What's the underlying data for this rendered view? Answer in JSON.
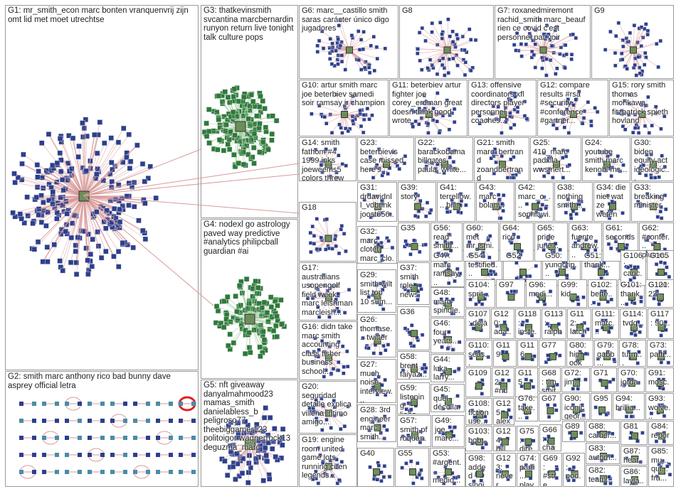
{
  "groups": [
    {
      "id": "G1",
      "text": "G1: mr_smith_econ marc bonten vranquenvrij zijn omt lid met moet utrechtse"
    },
    {
      "id": "G2",
      "text": "G2: smith marc anthony rico bad bunny dave asprey official letra"
    },
    {
      "id": "G3",
      "text": "G3: thatkevinsmith svcantina marcbernardin runyon return live tonight talk culture pops"
    },
    {
      "id": "G4",
      "text": "G4: nodexl go astrology paved way predictive #analytics philipcball guardian #ai"
    },
    {
      "id": "G5",
      "text": "G5: nft giveaway danyalmahmood23 mamas_smith danielabless_b peligroso77 theebiggamer123 politoigor wagnerrock13 deguzma_marc"
    },
    {
      "id": "G6",
      "text": "G6: marc__castillo smith saras carácter único digo jugadores"
    },
    {
      "id": "G7",
      "text": "G7: roxanedmiremont rachid_smith marc_beauf rien ce covid c'est personnel par voir"
    },
    {
      "id": "G8",
      "text": "G8"
    },
    {
      "id": "G9",
      "text": "G9"
    },
    {
      "id": "G10",
      "text": "G10: artur smith marc joe beterbiev samedi soir ramsay jr champion"
    },
    {
      "id": "G11",
      "text": "G11: beterbiev artur fighter joe corey_erdman great doesn think good wrote"
    },
    {
      "id": "G12",
      "text": "G12: compare results #rsa #security #conference #gartner..."
    },
    {
      "id": "G13",
      "text": "G13: offensive coordinators xfl directors player personnel coaches..."
    },
    {
      "id": "G14",
      "text": "G14: smith fathom #4 1999 inks joeweems5 colors threw marc_silvestr..."
    },
    {
      "id": "G15",
      "text": "G15: rory smith thomas morikawa fitzpatrick spieth hovland"
    },
    {
      "id": "G16",
      "text": "G16: didn take marc smith accounting class fisher business school..."
    },
    {
      "id": "G17",
      "text": "G17: australians usopengolf field week marc leishman marcleish..."
    },
    {
      "id": "G18",
      "text": "G18"
    },
    {
      "id": "G19",
      "text": "G19: engine room united game lots running ciren legends..."
    },
    {
      "id": "G20",
      "text": "G20: seguridad detalle explica villena íntimo amigo..."
    },
    {
      "id": "G21",
      "text": "G21: smith marc_bertrand zoandbertrand"
    },
    {
      "id": "G22",
      "text": "G22: barackobama billgates paula_white..."
    },
    {
      "id": "G23",
      "text": "G23: beterbiev's case missed here's..."
    },
    {
      "id": "G24",
      "text": "G24: youtube smith marc kenobi ms..."
    },
    {
      "id": "G25",
      "text": "G25: 410_marc padxlla wwsmert..."
    },
    {
      "id": "G26",
      "text": "G26: thomase... twitter"
    },
    {
      "id": "G27",
      "text": "G27: much noise interview..."
    },
    {
      "id": "G28",
      "text": "G28: 3rd engineer marc smith..."
    },
    {
      "id": "G29",
      "text": "G29: smith wilt list top 10 sum..."
    },
    {
      "id": "G30",
      "text": "G30: biden equity act ideologic..."
    },
    {
      "id": "G31",
      "text": "G31: drdavidnl l_vdbrink joost656..."
    },
    {
      "id": "G32",
      "text": "G32: marc clotet marc_clo... #ultimopr..."
    },
    {
      "id": "G33",
      "text": "G33: breaking minister"
    },
    {
      "id": "G34",
      "text": "G34: die niet wat ze weten"
    },
    {
      "id": "G35",
      "text": "G35"
    },
    {
      "id": "G36",
      "text": "G36"
    },
    {
      "id": "G37",
      "text": "G37: smith role news"
    },
    {
      "id": "G38",
      "text": "G38: nothing smith..."
    },
    {
      "id": "G39",
      "text": "G39: story"
    },
    {
      "id": "G40",
      "text": "G40"
    },
    {
      "id": "G41",
      "text": "G41: terrellow... bill..."
    },
    {
      "id": "G42",
      "text": "G42: marc_o_... sophiawi..."
    },
    {
      "id": "G43",
      "text": "G43: marc bolan..."
    },
    {
      "id": "G44",
      "text": "G44: luka larry..."
    },
    {
      "id": "G45",
      "text": "G45: quel décolla..."
    },
    {
      "id": "G46",
      "text": "G46: four years..."
    },
    {
      "id": "G47",
      "text": "G47: marc ramsay..."
    },
    {
      "id": "G48",
      "text": "G48: marc spindle..."
    },
    {
      "id": "G49",
      "text": "G49: joe marc..."
    },
    {
      "id": "G50",
      "text": "G50: yungcrip..."
    },
    {
      "id": "G51",
      "text": "G51: thank..."
    },
    {
      "id": "G52",
      "text": "G52"
    },
    {
      "id": "G53",
      "text": "G53: #argent... medio..."
    },
    {
      "id": "G54",
      "text": "G54: testified..."
    },
    {
      "id": "G55",
      "text": "G55"
    },
    {
      "id": "G56",
      "text": "G56: read smith..."
    },
    {
      "id": "G57",
      "text": "G57: smith pf roquan..."
    },
    {
      "id": "G58",
      "text": "G58: brent faiyaz..."
    },
    {
      "id": "G59",
      "text": "G59: listening lions..."
    },
    {
      "id": "G60",
      "text": "G60: met mr_smi..."
    },
    {
      "id": "G61",
      "text": "G61: seconds"
    },
    {
      "id": "G62",
      "text": "G62: #confér... plume..."
    },
    {
      "id": "G63",
      "text": "G63: fuente andrew..."
    },
    {
      "id": "G64",
      "text": "G64: rico"
    },
    {
      "id": "G65",
      "text": "G65: pride june..."
    },
    {
      "id": "G66",
      "text": "G66: chap... shrir..."
    },
    {
      "id": "G67",
      "text": "G67"
    },
    {
      "id": "G68",
      "text": "G68: tim smit..."
    },
    {
      "id": "G69",
      "text": "G69: #stre... #no..."
    },
    {
      "id": "G70",
      "text": "G70: jorda..."
    },
    {
      "id": "G71",
      "text": "G71"
    },
    {
      "id": "G72",
      "text": "G72: jim..."
    },
    {
      "id": "G73",
      "text": "G73: patti..."
    },
    {
      "id": "G74",
      "text": "G74: parti... play..."
    },
    {
      "id": "G75",
      "text": "G75: direc..."
    },
    {
      "id": "G76",
      "text": "G76: take..."
    },
    {
      "id": "G77",
      "text": "G77"
    },
    {
      "id": "G78",
      "text": "G78: turm..."
    },
    {
      "id": "G79",
      "text": "G79: gabb..."
    },
    {
      "id": "G80",
      "text": "G80: hip ook"
    },
    {
      "id": "G81",
      "text": "G81"
    },
    {
      "id": "G82",
      "text": "G82: team..."
    },
    {
      "id": "G83",
      "text": "G83: autom..."
    },
    {
      "id": "G84",
      "text": "G84: repor..."
    },
    {
      "id": "G85",
      "text": "G85: mu... qui... fra..."
    },
    {
      "id": "G86",
      "text": "G86: layla..."
    },
    {
      "id": "G87",
      "text": "G87: heat..."
    },
    {
      "id": "G88",
      "text": "G88: camer..."
    },
    {
      "id": "G89",
      "text": "G89"
    },
    {
      "id": "G90",
      "text": "G90: iconic geor..."
    },
    {
      "id": "G91",
      "text": "G91: mosc..."
    },
    {
      "id": "G92",
      "text": "G92: pod... cultu..."
    },
    {
      "id": "G93",
      "text": "G93: wolve..."
    },
    {
      "id": "G94",
      "text": "G94: brillia..."
    },
    {
      "id": "G95",
      "text": "G95"
    },
    {
      "id": "G96",
      "text": "G96: medi..."
    },
    {
      "id": "G97",
      "text": "G97"
    },
    {
      "id": "G98",
      "text": "G98: added singi..."
    },
    {
      "id": "G99",
      "text": "G99: kid..."
    },
    {
      "id": "G100",
      "text": "G100"
    },
    {
      "id": "G101",
      "text": "G101: thank..."
    },
    {
      "id": "G102",
      "text": "G102: bette..."
    },
    {
      "id": "G103",
      "text": "G103: bob..."
    },
    {
      "id": "G104",
      "text": "G104: sprit..."
    },
    {
      "id": "G105",
      "text": "G105"
    },
    {
      "id": "G106",
      "text": "G106: caric..."
    },
    {
      "id": "G107",
      "text": "G107: déjà"
    },
    {
      "id": "G108",
      "text": "G108: fiction use..."
    },
    {
      "id": "G109",
      "text": "G109"
    },
    {
      "id": "G110",
      "text": "G110: seas..."
    },
    {
      "id": "G111",
      "text": "G111: marc..."
    },
    {
      "id": "G112",
      "text": "G112: latch..."
    },
    {
      "id": "G113",
      "text": "G113: ralph..."
    },
    {
      "id": "G114",
      "text": "G114: tvdg..."
    },
    {
      "id": "G115",
      "text": "G115"
    },
    {
      "id": "G116",
      "text": "G116"
    },
    {
      "id": "G117",
      "text": "G117: 90..."
    },
    {
      "id": "G118",
      "text": "G118: inste..."
    },
    {
      "id": "G119",
      "text": "G119"
    },
    {
      "id": "G120",
      "text": "G120: ada..."
    },
    {
      "id": "G121",
      "text": "G121: 22..."
    },
    {
      "id": "G122",
      "text": "G122: #nup... redo..."
    },
    {
      "id": "G123",
      "text": "G123: never forge..."
    },
    {
      "id": "G124",
      "text": "G124: bill..."
    },
    {
      "id": "G125",
      "text": "G125: alex epis..."
    }
  ],
  "colors": {
    "edge": "#d99a9a",
    "edge_dark": "#b03030",
    "node_blue": "#2c3f8f",
    "node_green": "#2d7a3a",
    "node_red": "#e02020",
    "node_gray": "#888888",
    "border": "#9a9a9a"
  }
}
